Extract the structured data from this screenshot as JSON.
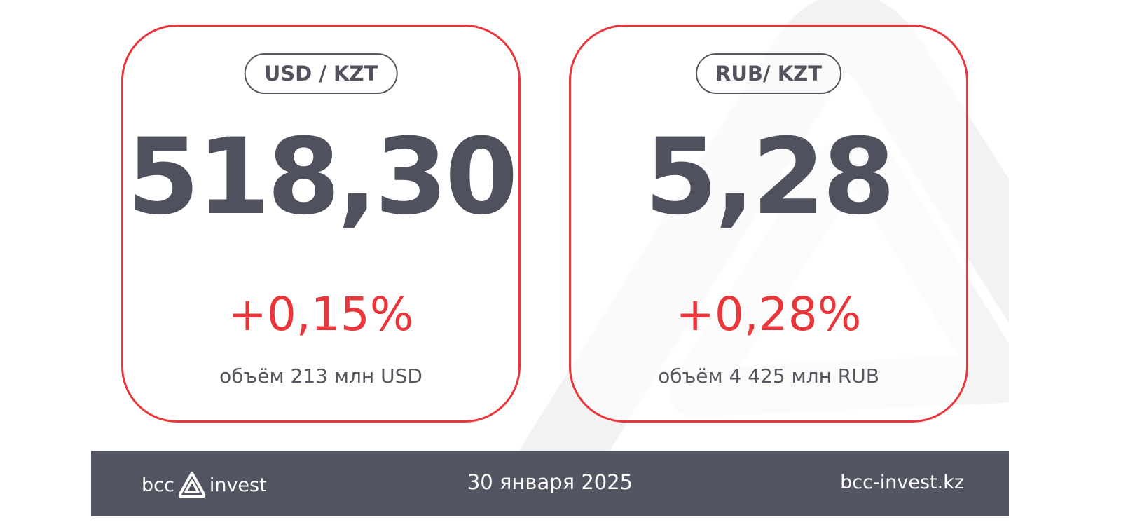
{
  "cards": [
    {
      "pair": "USD / KZT",
      "rate": "518,30",
      "change": "+0,15%",
      "volume": "объём 213 млн USD"
    },
    {
      "pair": "RUB/ KZT",
      "rate": "5,28",
      "change": "+0,28%",
      "volume": "объём 4 425 млн RUB"
    }
  ],
  "footer": {
    "logo_left": "bcc",
    "logo_right": "invest",
    "date": "30 января 2025",
    "website": "bcc-invest.kz"
  },
  "colors": {
    "accent": "#e8363b",
    "text": "#4f525e",
    "footer_bg": "#535562"
  }
}
